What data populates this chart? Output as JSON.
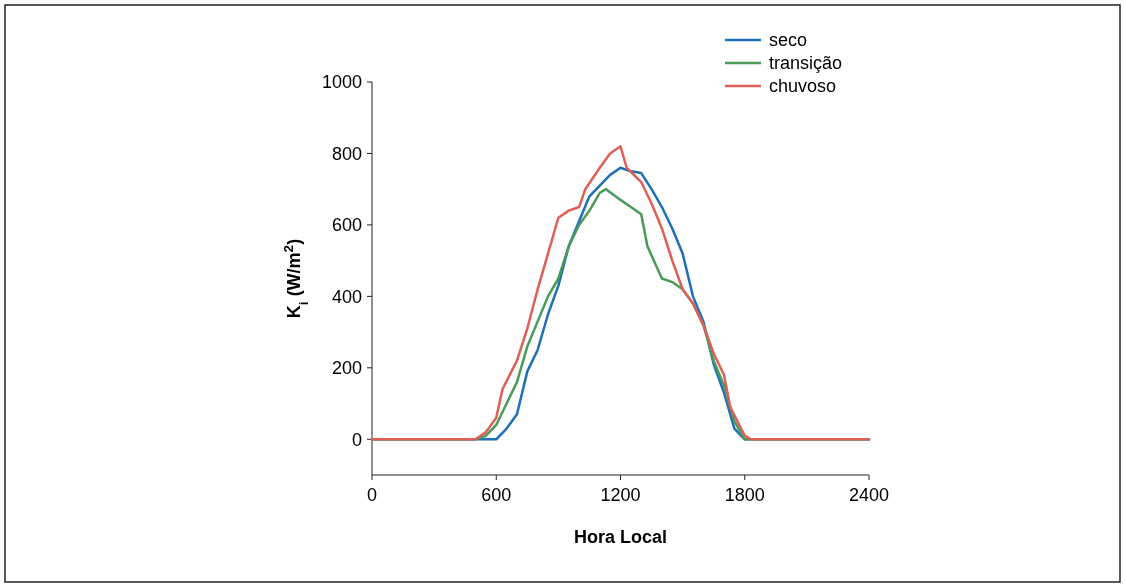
{
  "chart_data": {
    "type": "line",
    "xlabel": "Hora Local",
    "ylabel": "K$_{i}$ (W/m$^{2}$)",
    "xlim": [
      0,
      2400
    ],
    "xticks": [
      0,
      600,
      1200,
      1800,
      2400
    ],
    "ylim": [
      -100,
      1000
    ],
    "yticks": [
      0,
      200,
      400,
      600,
      800,
      1000
    ],
    "grid": false,
    "legend": "top right",
    "marker": "none",
    "line_style": "solid",
    "series": [
      {
        "name": "seco",
        "color": "#1f6fb8",
        "x": [
          0,
          500,
          600,
          650,
          700,
          750,
          800,
          850,
          900,
          950,
          1000,
          1050,
          1100,
          1150,
          1200,
          1250,
          1300,
          1350,
          1400,
          1450,
          1500,
          1550,
          1600,
          1650,
          1700,
          1750,
          1800,
          2400
        ],
        "values": [
          0,
          0,
          0,
          30,
          70,
          190,
          250,
          350,
          430,
          540,
          610,
          680,
          710,
          740,
          760,
          750,
          745,
          700,
          650,
          590,
          520,
          400,
          330,
          210,
          130,
          30,
          0,
          0
        ]
      },
      {
        "name": "transição",
        "color": "#4a9a5a",
        "x": [
          0,
          500,
          550,
          600,
          650,
          700,
          750,
          800,
          850,
          900,
          950,
          1000,
          1050,
          1100,
          1130,
          1200,
          1250,
          1300,
          1330,
          1400,
          1450,
          1500,
          1550,
          1600,
          1650,
          1700,
          1750,
          1800,
          2400
        ],
        "values": [
          0,
          0,
          10,
          40,
          100,
          160,
          260,
          330,
          400,
          450,
          540,
          600,
          640,
          690,
          700,
          670,
          650,
          630,
          540,
          450,
          440,
          420,
          380,
          320,
          220,
          150,
          50,
          0,
          0
        ]
      },
      {
        "name": "chuvoso",
        "color": "#dd5f55",
        "x": [
          0,
          500,
          550,
          600,
          630,
          700,
          750,
          800,
          830,
          900,
          950,
          1000,
          1030,
          1100,
          1150,
          1200,
          1230,
          1300,
          1350,
          1400,
          1450,
          1500,
          1550,
          1600,
          1650,
          1700,
          1730,
          1800,
          1830,
          2400
        ],
        "values": [
          0,
          0,
          20,
          60,
          140,
          220,
          310,
          420,
          480,
          620,
          640,
          650,
          700,
          760,
          800,
          820,
          760,
          720,
          660,
          590,
          500,
          420,
          380,
          320,
          240,
          180,
          90,
          10,
          0,
          0
        ]
      }
    ]
  }
}
